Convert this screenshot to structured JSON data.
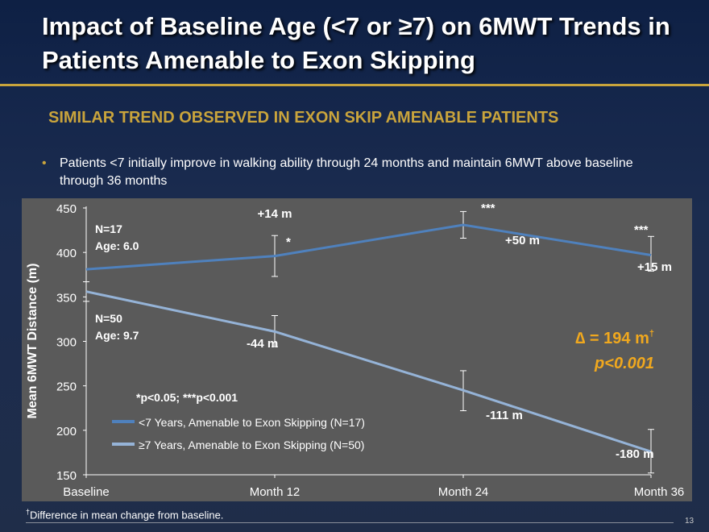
{
  "slide": {
    "title": "Impact of Baseline Age (<7 or ≥7) on 6MWT Trends in Patients Amenable to Exon Skipping",
    "subtitle": "SIMILAR TREND OBSERVED IN EXON SKIP AMENABLE PATIENTS",
    "bullet": "Patients <7 initially improve in walking ability through 24 months and maintain 6MWT above baseline through 36 months",
    "footnote_mark": "†",
    "footnote": "Difference in mean change from baseline.",
    "page_number": "13"
  },
  "colors": {
    "gold": "#c9a43c",
    "series_young": "#4f81bd",
    "series_old": "#95b3d7",
    "plot_bg": "#5a5a5a",
    "delta_text": "#f0a81e"
  },
  "chart_data": {
    "type": "line",
    "ylabel": "Mean 6MWT Distance (m)",
    "categories": [
      "Baseline",
      "Month 12",
      "Month 24",
      "Month 36"
    ],
    "ylim": [
      150,
      450
    ],
    "yticks": [
      150,
      200,
      250,
      300,
      350,
      400,
      450
    ],
    "grid": false,
    "series": [
      {
        "name": "<7 Years, Amenable to Exon Skipping (N=17)",
        "values": [
          381,
          396,
          431,
          397
        ],
        "error_low": [
          null,
          373,
          416,
          379
        ],
        "error_high": [
          null,
          419,
          446,
          418
        ],
        "point_labels": [
          "",
          "+14 m",
          "+50 m",
          "+15 m"
        ],
        "significance": [
          "",
          "*",
          "***",
          "***"
        ],
        "group_label": {
          "n": "N=17",
          "age": "Age: 6.0"
        }
      },
      {
        "name": "≥7 Years, Amenable to Exon Skipping (N=50)",
        "values": [
          356,
          311,
          245,
          176
        ],
        "error_low": [
          345,
          294,
          222,
          152
        ],
        "error_high": [
          367,
          329,
          267,
          201
        ],
        "point_labels": [
          "",
          "-44 m",
          "-111 m",
          "-180  m"
        ],
        "significance": [
          "",
          "",
          "",
          ""
        ],
        "group_label": {
          "n": "N=50",
          "age": "Age: 9.7"
        }
      }
    ],
    "significance_note": "*p<0.05; ***p<0.001",
    "delta": {
      "symbol": "∆",
      "text": " = 194 m",
      "mark": "†",
      "p": "p<0.001"
    }
  }
}
